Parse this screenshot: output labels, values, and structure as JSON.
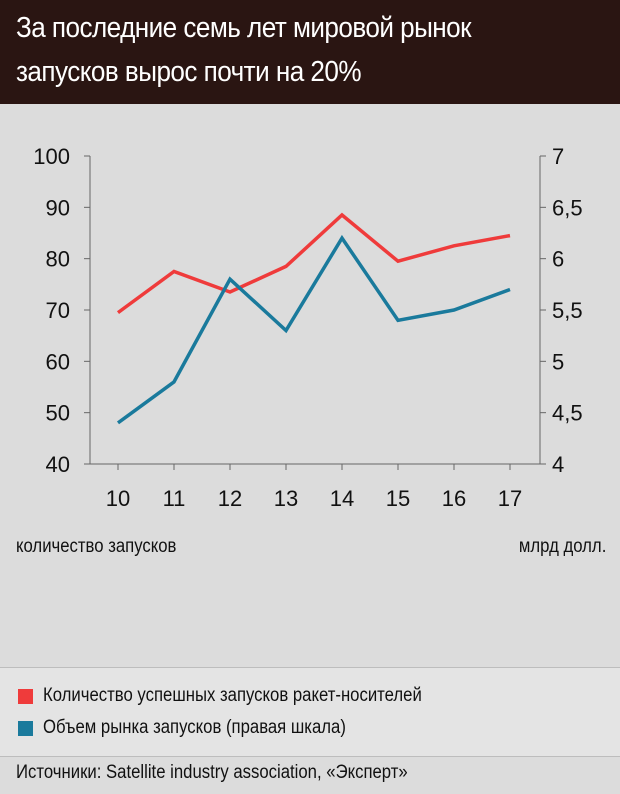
{
  "title": "За последние семь лет мировой рынок запусков вырос почти на 20%",
  "left_axis_unit": "количество запусков",
  "right_axis_unit": "млрд долл.",
  "source": "Источники: Satellite industry association, «Эксперт»",
  "colors": {
    "header_bg": "#2a1512",
    "background": "#dcdcdc",
    "launches": "#ef3b3b",
    "market": "#1a7a9c"
  },
  "chart_data": {
    "type": "line",
    "categories": [
      "10",
      "11",
      "12",
      "13",
      "14",
      "15",
      "16",
      "17"
    ],
    "y_left": {
      "ticks": [
        "100",
        "90",
        "80",
        "70",
        "60",
        "50",
        "40"
      ],
      "ylim": [
        40,
        100
      ]
    },
    "y_right": {
      "ticks": [
        "7",
        "6,5",
        "6",
        "5,5",
        "5",
        "4,5",
        "4"
      ],
      "ylim": [
        4,
        7
      ]
    },
    "series": [
      {
        "name": "Количество успешных запусков ракет-носителей",
        "axis": "left",
        "color": "#ef3b3b",
        "values": [
          69.5,
          77.5,
          73.5,
          78.5,
          88.5,
          79.5,
          82.5,
          84.5
        ]
      },
      {
        "name": "Объем рынка запусков (правая шкала)",
        "axis": "right",
        "color": "#1a7a9c",
        "values": [
          4.4,
          4.8,
          5.8,
          5.3,
          6.2,
          5.4,
          5.5,
          5.7
        ]
      }
    ],
    "grid": false
  }
}
